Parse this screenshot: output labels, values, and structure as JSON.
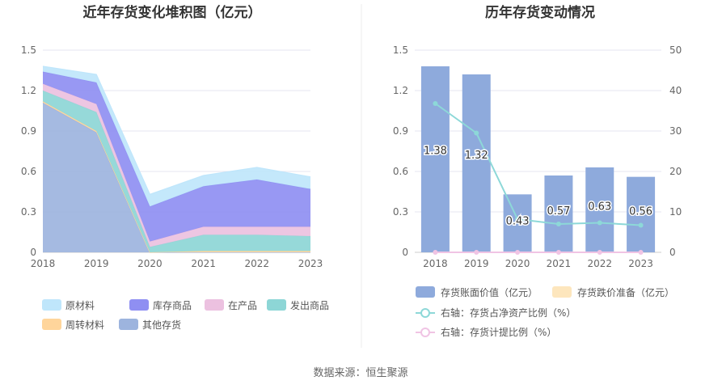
{
  "source_label": "数据来源：恒生聚源",
  "chart_data": [
    {
      "type": "area",
      "title": "近年存货变化堆积图（亿元）",
      "categories": [
        "2018",
        "2019",
        "2020",
        "2021",
        "2022",
        "2023"
      ],
      "y_ticks": [
        "0",
        "0.3",
        "0.6",
        "0.9",
        "1.2",
        "1.5"
      ],
      "ylim": [
        0,
        1.5
      ],
      "grid": true,
      "legend_position": "bottom",
      "series": [
        {
          "name": "其他存货",
          "color": "#9db4de",
          "values": [
            1.11,
            0.89,
            0.0,
            0.0,
            0.0,
            0.0
          ]
        },
        {
          "name": "周转材料",
          "color": "#ffd59b",
          "values": [
            0.01,
            0.01,
            0.0,
            0.01,
            0.01,
            0.01
          ]
        },
        {
          "name": "发出商品",
          "color": "#8dd6d6",
          "values": [
            0.08,
            0.14,
            0.04,
            0.12,
            0.12,
            0.11
          ]
        },
        {
          "name": "在产品",
          "color": "#ecc1e0",
          "values": [
            0.05,
            0.06,
            0.04,
            0.06,
            0.06,
            0.07
          ]
        },
        {
          "name": "库存商品",
          "color": "#8f8ff2",
          "values": [
            0.09,
            0.16,
            0.26,
            0.3,
            0.35,
            0.28
          ]
        },
        {
          "name": "原材料",
          "color": "#bfe6fb",
          "values": [
            0.04,
            0.06,
            0.09,
            0.08,
            0.09,
            0.09
          ]
        }
      ],
      "legend_order": [
        "原材料",
        "库存商品",
        "在产品",
        "发出商品",
        "周转材料",
        "其他存货"
      ]
    },
    {
      "type": "bar",
      "title": "历年存货变动情况",
      "categories": [
        "2018",
        "2019",
        "2020",
        "2021",
        "2022",
        "2023"
      ],
      "y_ticks_left": [
        "0",
        "0.3",
        "0.6",
        "0.9",
        "1.2",
        "1.5"
      ],
      "y_ticks_right": [
        "0",
        "10",
        "20",
        "30",
        "40",
        "50"
      ],
      "ylim_left": [
        0,
        1.5
      ],
      "ylim_right": [
        0,
        50
      ],
      "grid": true,
      "legend_position": "bottom",
      "series": [
        {
          "name": "存货账面价值（亿元）",
          "type": "bar",
          "axis": "left",
          "color": "#8eaadc",
          "values": [
            1.38,
            1.32,
            0.43,
            0.57,
            0.63,
            0.56
          ],
          "labels": [
            "1.38",
            "1.32",
            "0.43",
            "0.57",
            "0.63",
            "0.56"
          ]
        },
        {
          "name": "存货跌价准备（亿元）",
          "type": "bar",
          "axis": "left",
          "color": "#fde6bd",
          "values": [
            0,
            0,
            0,
            0,
            0,
            0
          ]
        },
        {
          "name": "右轴：存货占净资产比例（%）",
          "type": "line",
          "axis": "right",
          "color": "#8dd8d8",
          "values": [
            36.8,
            29.5,
            8.2,
            7.0,
            7.3,
            6.7
          ]
        },
        {
          "name": "右轴：存货计提比例（%）",
          "type": "line",
          "axis": "right",
          "color": "#f0c4e4",
          "values": [
            0,
            0,
            0,
            0,
            0,
            0
          ]
        }
      ]
    }
  ]
}
